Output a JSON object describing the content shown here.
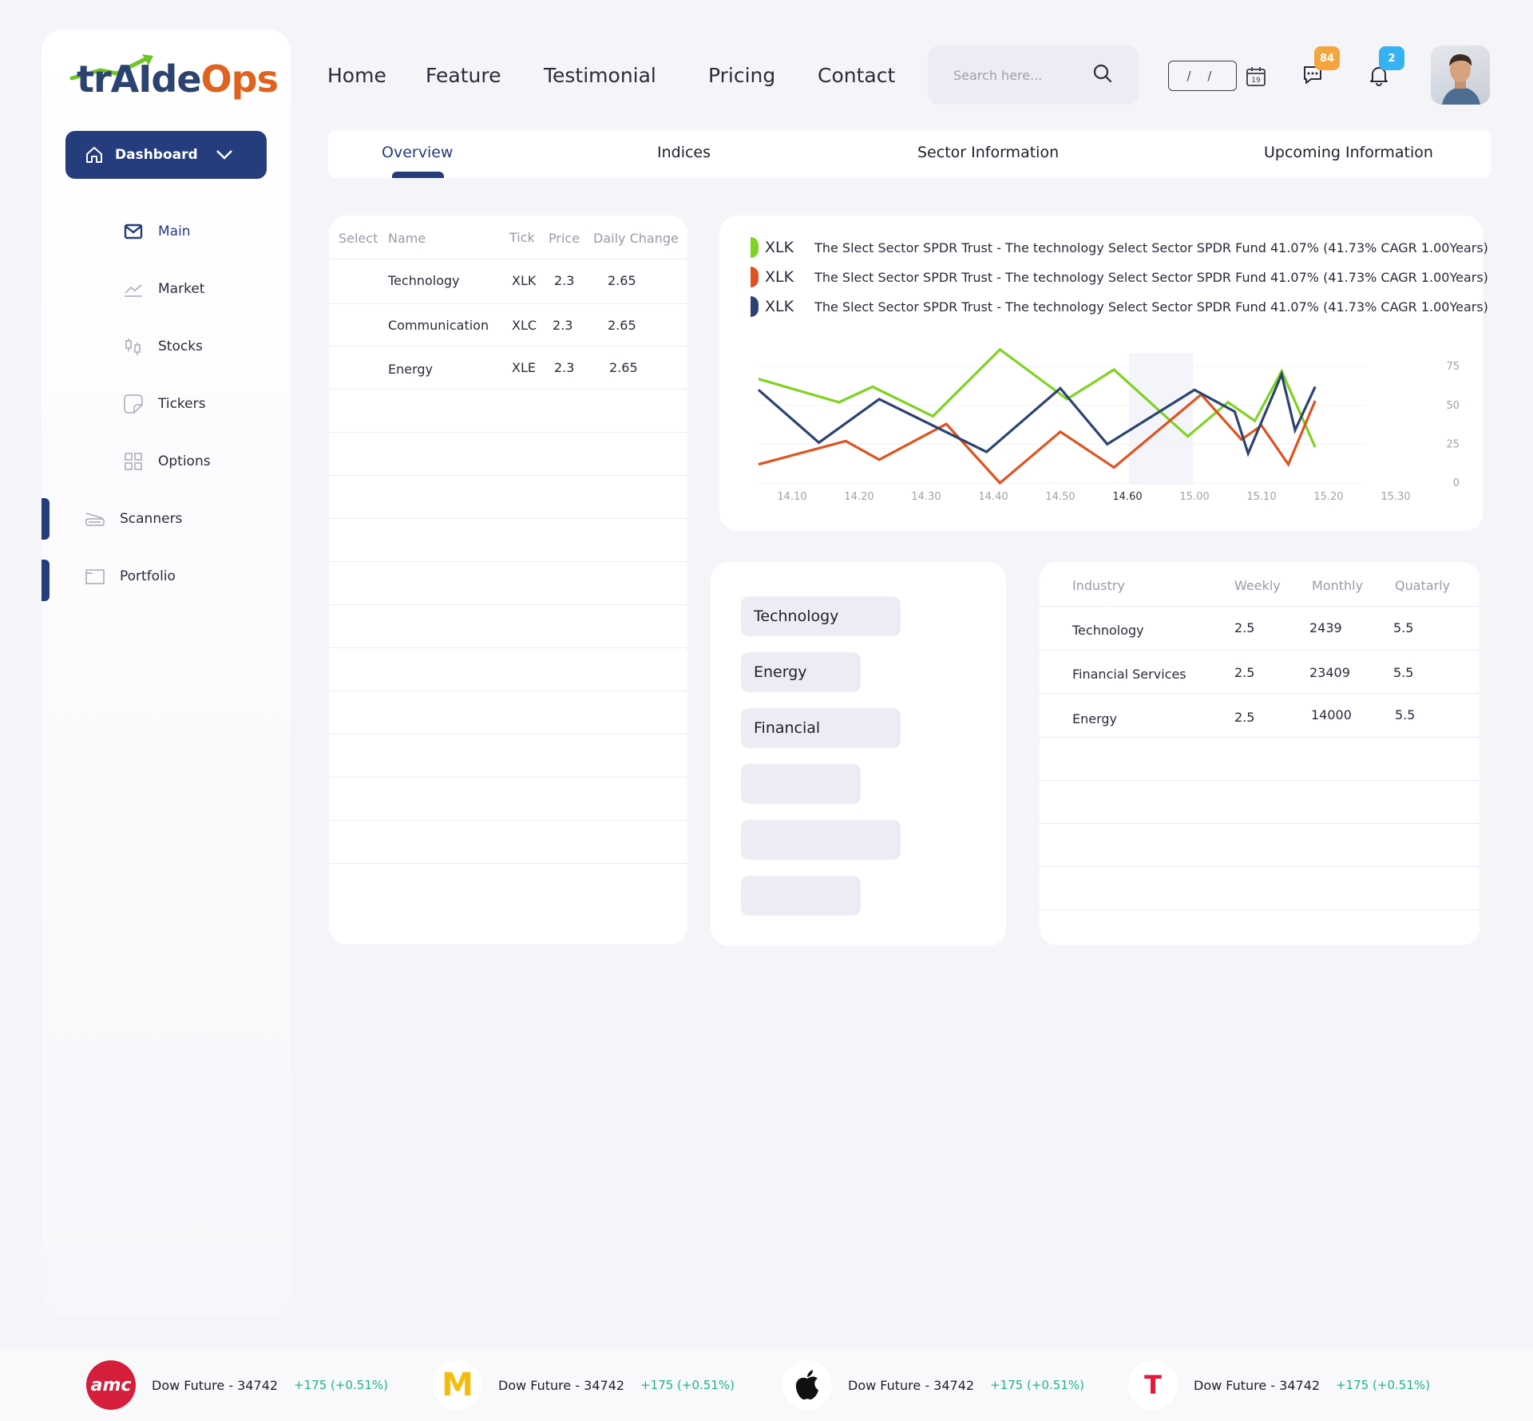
{
  "app": {
    "logo_text_a": "trAIde",
    "logo_text_b": "Ops"
  },
  "colors": {
    "primary": "#253c7d",
    "green": "#7ed321",
    "orange": "#e0521f",
    "navy": "#2c4372",
    "positive": "#1fb384",
    "badge_orange": "#f4a53e",
    "badge_blue": "#36b2f2"
  },
  "sidebar": {
    "dashboard_label": "Dashboard",
    "items": [
      {
        "label": "Main",
        "icon": "mail-icon"
      },
      {
        "label": "Market",
        "icon": "line-chart-icon"
      },
      {
        "label": "Stocks",
        "icon": "candles-icon"
      },
      {
        "label": "Tickers",
        "icon": "sticker-icon"
      },
      {
        "label": "Options",
        "icon": "grid-icon"
      },
      {
        "label": "Scanners",
        "icon": "scanner-icon"
      },
      {
        "label": "Portfolio",
        "icon": "folder-icon"
      }
    ]
  },
  "nav": {
    "links": [
      "Home",
      "Feature",
      "Testimonial",
      "Pricing",
      "Contact"
    ]
  },
  "search": {
    "placeholder": "Search here..."
  },
  "date": {
    "value": "/ /",
    "calendar_day": "19"
  },
  "badges": {
    "messages": "84",
    "notifications": "2"
  },
  "tabs": [
    "Overview",
    "Indices",
    "Sector Information",
    "Upcoming Information"
  ],
  "sector_table": {
    "headers": [
      "Select",
      "Name",
      "Tick",
      "Price",
      "Daily Change"
    ],
    "rows": [
      {
        "name": "Technology",
        "tick": "XLK",
        "price": "2.3",
        "change": "2.65"
      },
      {
        "name": "Communication",
        "tick": "XLC",
        "price": "2.3",
        "change": "2.65"
      },
      {
        "name": "Energy",
        "tick": "XLE",
        "price": "2.3",
        "change": "2.65"
      }
    ]
  },
  "legend": [
    {
      "tick": "XLK",
      "text": "The Slect Sector SPDR Trust - The technology Select Sector SPDR Fund 41.07% (41.73% CAGR 1.00Years)",
      "color": "#7ed321"
    },
    {
      "tick": "XLK",
      "text": "The Slect Sector SPDR Trust - The technology Select Sector SPDR Fund 41.07% (41.73% CAGR 1.00Years)",
      "color": "#e0521f"
    },
    {
      "tick": "XLK",
      "text": "The Slect Sector SPDR Trust - The technology Select Sector SPDR Fund 41.07% (41.73% CAGR 1.00Years)",
      "color": "#2c4372"
    }
  ],
  "chart_data": {
    "type": "line",
    "x": [
      "14.10",
      "14.20",
      "14.30",
      "14.40",
      "14.50",
      "14.60",
      "15.00",
      "15.10",
      "15.20",
      "15.30"
    ],
    "highlight_x": "14.60",
    "y_ticks": [
      "75",
      "50",
      "25",
      "0"
    ],
    "ylim": [
      0,
      75
    ],
    "series": [
      {
        "color": "#7ed321",
        "points": [
          [
            0,
            67
          ],
          [
            1.2,
            52
          ],
          [
            1.7,
            62
          ],
          [
            2.6,
            43
          ],
          [
            3.6,
            86
          ],
          [
            4.6,
            54
          ],
          [
            5.3,
            73
          ],
          [
            6.4,
            30
          ],
          [
            7.0,
            52
          ],
          [
            7.4,
            40
          ],
          [
            7.8,
            72
          ],
          [
            8.3,
            23
          ]
        ]
      },
      {
        "color": "#e0521f",
        "points": [
          [
            0,
            12
          ],
          [
            1.3,
            27
          ],
          [
            1.8,
            15
          ],
          [
            2.8,
            38
          ],
          [
            3.6,
            0
          ],
          [
            4.5,
            33
          ],
          [
            5.3,
            10
          ],
          [
            6.6,
            57
          ],
          [
            7.2,
            28
          ],
          [
            7.5,
            37
          ],
          [
            7.9,
            12
          ],
          [
            8.3,
            53
          ]
        ]
      },
      {
        "color": "#2c4372",
        "points": [
          [
            0,
            60
          ],
          [
            0.9,
            26
          ],
          [
            1.8,
            54
          ],
          [
            3.4,
            20
          ],
          [
            4.5,
            61
          ],
          [
            5.2,
            25
          ],
          [
            6.5,
            60
          ],
          [
            7.1,
            46
          ],
          [
            7.3,
            19
          ],
          [
            7.8,
            70
          ],
          [
            8.0,
            34
          ],
          [
            8.3,
            62
          ]
        ]
      }
    ]
  },
  "pills": [
    "Technology",
    "Energy",
    "Financial",
    "",
    "",
    ""
  ],
  "industry_table": {
    "headers": [
      "Industry",
      "Weekly",
      "Monthly",
      "Quatarly"
    ],
    "rows": [
      {
        "industry": "Technology",
        "weekly": "2.5",
        "monthly": "2439",
        "quarterly": "5.5"
      },
      {
        "industry": "Financial Services",
        "weekly": "2.5",
        "monthly": "23409",
        "quarterly": "5.5"
      },
      {
        "industry": "Energy",
        "weekly": "2.5",
        "monthly": "14000",
        "quarterly": "5.5"
      }
    ]
  },
  "ticker": [
    {
      "logo": "amc-logo",
      "logo_text": "amc",
      "name": "Dow Future - 34742",
      "change": "+175 (+0.51%)"
    },
    {
      "logo": "mcdonalds-logo",
      "logo_text": "M",
      "name": "Dow Future - 34742",
      "change": "+175 (+0.51%)"
    },
    {
      "logo": "apple-logo",
      "logo_text": "",
      "name": "Dow Future - 34742",
      "change": "+175 (+0.51%)"
    },
    {
      "logo": "tesla-logo",
      "logo_text": "T",
      "name": "Dow Future - 34742",
      "change": "+175 (+0.51%)"
    }
  ]
}
